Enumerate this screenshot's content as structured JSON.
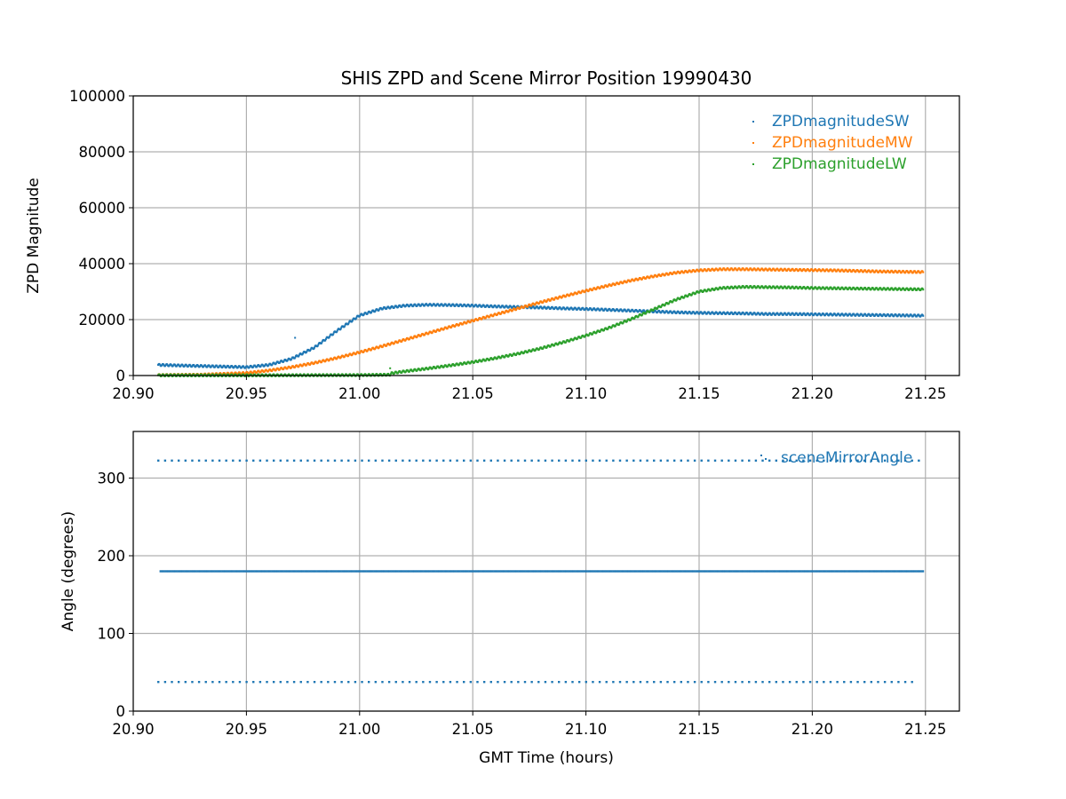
{
  "chart_data": [
    {
      "type": "scatter",
      "title": "SHIS ZPD and Scene Mirror Position 19990430",
      "xlabel": "",
      "ylabel": "ZPD Magnitude",
      "xlim": [
        20.9,
        21.265
      ],
      "ylim": [
        0,
        100000
      ],
      "xticks": [
        20.9,
        20.95,
        21.0,
        21.05,
        21.1,
        21.15,
        21.2,
        21.25
      ],
      "xtick_labels": [
        "20.90",
        "20.95",
        "21.00",
        "21.05",
        "21.10",
        "21.15",
        "21.20",
        "21.25"
      ],
      "yticks": [
        0,
        20000,
        40000,
        60000,
        80000,
        100000
      ],
      "ytick_labels": [
        "0",
        "20000",
        "40000",
        "60000",
        "80000",
        "100000"
      ],
      "grid": true,
      "legend_position": "top-right",
      "series": [
        {
          "name": "ZPDmagnitudeSW",
          "color": "#1f77b4",
          "points": [
            [
              20.911,
              3800
            ],
            [
              20.925,
              3500
            ],
            [
              20.94,
              3200
            ],
            [
              20.95,
              3000
            ],
            [
              20.96,
              3800
            ],
            [
              20.97,
              6000
            ],
            [
              20.98,
              10000
            ],
            [
              20.99,
              16000
            ],
            [
              21.0,
              21500
            ],
            [
              21.01,
              24000
            ],
            [
              21.02,
              25000
            ],
            [
              21.03,
              25300
            ],
            [
              21.04,
              25200
            ],
            [
              21.05,
              25000
            ],
            [
              21.06,
              24700
            ],
            [
              21.07,
              24500
            ],
            [
              21.08,
              24300
            ],
            [
              21.09,
              24000
            ],
            [
              21.1,
              23800
            ],
            [
              21.11,
              23500
            ],
            [
              21.12,
              23200
            ],
            [
              21.13,
              22900
            ],
            [
              21.14,
              22600
            ],
            [
              21.15,
              22400
            ],
            [
              21.16,
              22300
            ],
            [
              21.17,
              22200
            ],
            [
              21.18,
              22000
            ],
            [
              21.19,
              22000
            ],
            [
              21.2,
              21900
            ],
            [
              21.21,
              21800
            ],
            [
              21.22,
              21700
            ],
            [
              21.23,
              21600
            ],
            [
              21.24,
              21500
            ],
            [
              21.249,
              21400
            ]
          ],
          "outliers": [
            [
              20.9715,
              13500
            ]
          ]
        },
        {
          "name": "ZPDmagnitudeMW",
          "color": "#ff7f0e",
          "points": [
            [
              20.911,
              150
            ],
            [
              20.93,
              300
            ],
            [
              20.95,
              900
            ],
            [
              20.96,
              1800
            ],
            [
              20.97,
              3000
            ],
            [
              20.98,
              4500
            ],
            [
              20.99,
              6300
            ],
            [
              21.0,
              8300
            ],
            [
              21.01,
              10500
            ],
            [
              21.02,
              12800
            ],
            [
              21.03,
              15100
            ],
            [
              21.04,
              17400
            ],
            [
              21.05,
              19600
            ],
            [
              21.06,
              21800
            ],
            [
              21.07,
              24000
            ],
            [
              21.08,
              26200
            ],
            [
              21.09,
              28300
            ],
            [
              21.1,
              30300
            ],
            [
              21.11,
              32200
            ],
            [
              21.12,
              34000
            ],
            [
              21.13,
              35500
            ],
            [
              21.14,
              36800
            ],
            [
              21.15,
              37600
            ],
            [
              21.16,
              38000
            ],
            [
              21.17,
              38000
            ],
            [
              21.18,
              37900
            ],
            [
              21.19,
              37800
            ],
            [
              21.2,
              37700
            ],
            [
              21.21,
              37600
            ],
            [
              21.22,
              37400
            ],
            [
              21.23,
              37200
            ],
            [
              21.24,
              37100
            ],
            [
              21.249,
              37000
            ]
          ],
          "outliers": []
        },
        {
          "name": "ZPDmagnitudeLW",
          "color": "#2ca02c",
          "points": [
            [
              20.911,
              80
            ],
            [
              20.95,
              80
            ],
            [
              21.0,
              150
            ],
            [
              21.0135,
              300
            ],
            [
              21.014,
              800
            ],
            [
              21.02,
              1500
            ],
            [
              21.03,
              2500
            ],
            [
              21.04,
              3600
            ],
            [
              21.05,
              4800
            ],
            [
              21.06,
              6200
            ],
            [
              21.07,
              7800
            ],
            [
              21.08,
              9700
            ],
            [
              21.09,
              11900
            ],
            [
              21.1,
              14300
            ],
            [
              21.11,
              17000
            ],
            [
              21.12,
              20200
            ],
            [
              21.13,
              23700
            ],
            [
              21.14,
              27200
            ],
            [
              21.15,
              30000
            ],
            [
              21.16,
              31300
            ],
            [
              21.17,
              31700
            ],
            [
              21.18,
              31600
            ],
            [
              21.19,
              31500
            ],
            [
              21.2,
              31300
            ],
            [
              21.21,
              31200
            ],
            [
              21.22,
              31100
            ],
            [
              21.23,
              31000
            ],
            [
              21.24,
              30900
            ],
            [
              21.249,
              30800
            ]
          ],
          "outliers": [
            [
              21.0135,
              2600
            ]
          ]
        }
      ]
    },
    {
      "type": "scatter",
      "title": "",
      "xlabel": "GMT Time (hours)",
      "ylabel": "Angle (degrees)",
      "xlim": [
        20.9,
        21.265
      ],
      "ylim": [
        0,
        360
      ],
      "xticks": [
        20.9,
        20.95,
        21.0,
        21.05,
        21.1,
        21.15,
        21.2,
        21.25
      ],
      "xtick_labels": [
        "20.90",
        "20.95",
        "21.00",
        "21.05",
        "21.10",
        "21.15",
        "21.20",
        "21.25"
      ],
      "yticks": [
        0,
        100,
        200,
        300
      ],
      "ytick_labels": [
        "0",
        "100",
        "200",
        "300"
      ],
      "grid": true,
      "legend_position": "top-right",
      "series": [
        {
          "name": "sceneMirrorAngle",
          "color": "#1f77b4",
          "levels": [
            {
              "y": 322.5,
              "x_start": 20.911,
              "x_end": 21.249,
              "step": 0.003
            },
            {
              "y": 180,
              "x_start": 20.912,
              "x_end": 21.249,
              "step": 0.0011
            },
            {
              "y": 37.5,
              "x_start": 20.911,
              "x_end": 21.246,
              "step": 0.003
            }
          ]
        }
      ]
    }
  ]
}
